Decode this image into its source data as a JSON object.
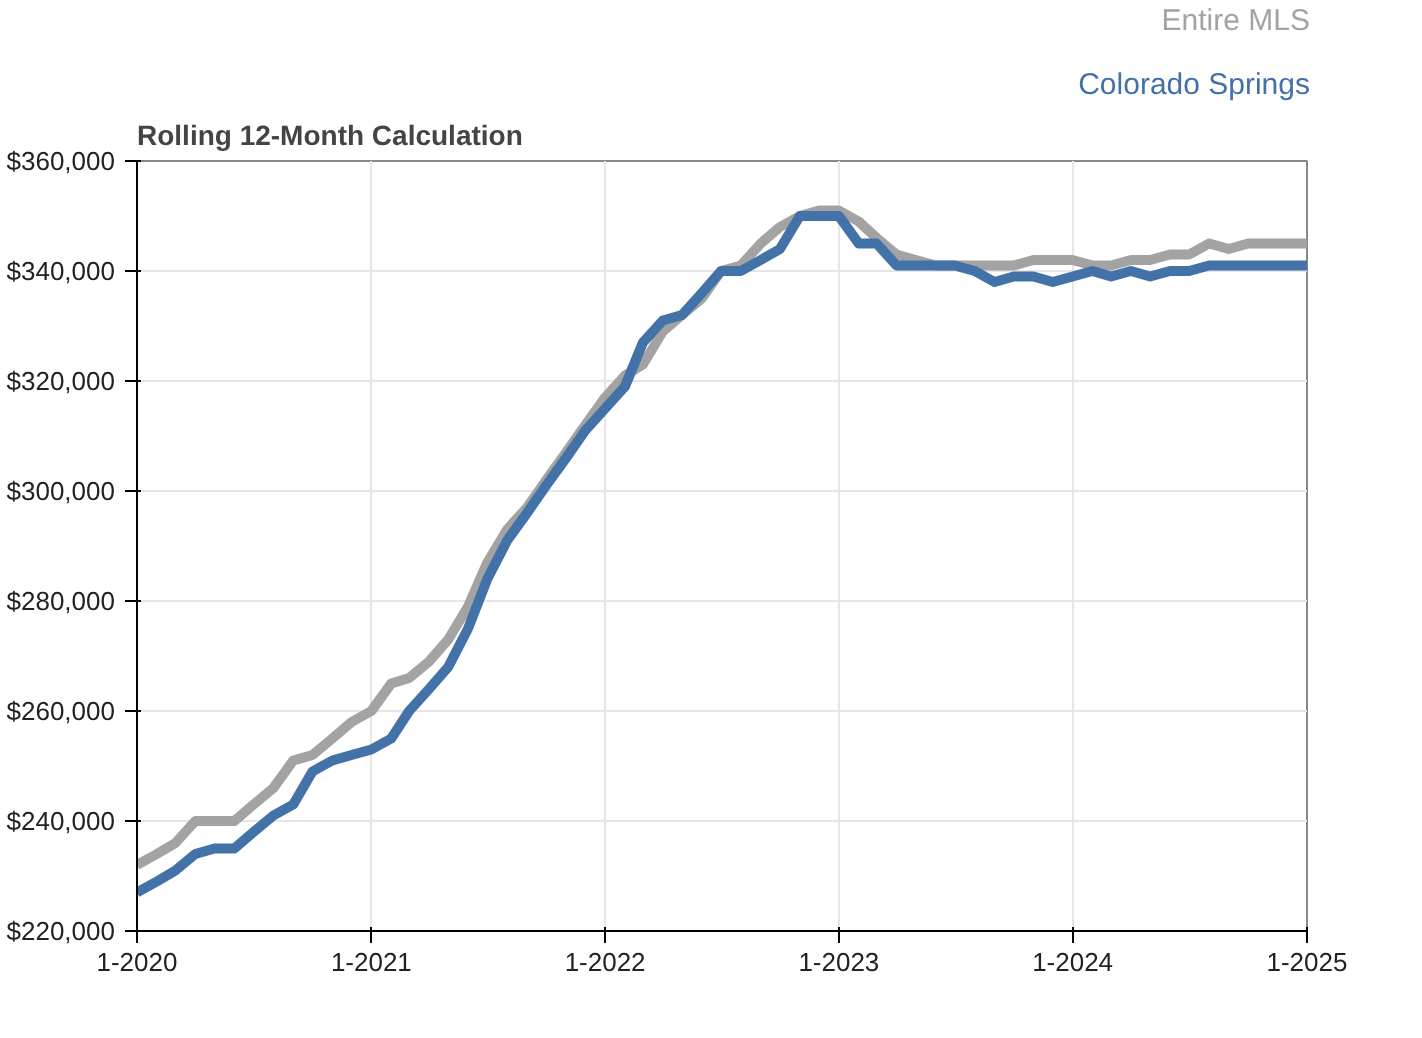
{
  "chart_data": {
    "type": "line",
    "title": "Rolling 12-Month Calculation",
    "x": [
      "2020-01",
      "2020-02",
      "2020-03",
      "2020-04",
      "2020-05",
      "2020-06",
      "2020-07",
      "2020-08",
      "2020-09",
      "2020-10",
      "2020-11",
      "2020-12",
      "2021-01",
      "2021-02",
      "2021-03",
      "2021-04",
      "2021-05",
      "2021-06",
      "2021-07",
      "2021-08",
      "2021-09",
      "2021-10",
      "2021-11",
      "2021-12",
      "2022-01",
      "2022-02",
      "2022-03",
      "2022-04",
      "2022-05",
      "2022-06",
      "2022-07",
      "2022-08",
      "2022-09",
      "2022-10",
      "2022-11",
      "2022-12",
      "2023-01",
      "2023-02",
      "2023-03",
      "2023-04",
      "2023-05",
      "2023-06",
      "2023-07",
      "2023-08",
      "2023-09",
      "2023-10",
      "2023-11",
      "2023-12",
      "2024-01",
      "2024-02",
      "2024-03",
      "2024-04",
      "2024-05",
      "2024-06",
      "2024-07",
      "2024-08",
      "2024-09",
      "2024-10",
      "2024-11",
      "2024-12",
      "2025-01"
    ],
    "series": [
      {
        "name": "Entire MLS",
        "color": "#a3a3a3",
        "values": [
          232000,
          234000,
          236000,
          240000,
          240000,
          240000,
          243000,
          246000,
          251000,
          252000,
          255000,
          258000,
          260000,
          265000,
          266000,
          269000,
          273000,
          279000,
          287000,
          293000,
          297000,
          302000,
          307000,
          312000,
          317000,
          321000,
          323000,
          329000,
          332000,
          335000,
          340000,
          341000,
          345000,
          348000,
          350000,
          351000,
          351000,
          349000,
          346000,
          343000,
          342000,
          341000,
          341000,
          341000,
          341000,
          341000,
          342000,
          342000,
          342000,
          341000,
          341000,
          342000,
          342000,
          343000,
          343000,
          345000,
          344000,
          345000,
          345000,
          345000,
          345000
        ]
      },
      {
        "name": "Colorado Springs",
        "color": "#4272a8",
        "values": [
          227000,
          229000,
          231000,
          234000,
          235000,
          235000,
          238000,
          241000,
          243000,
          249000,
          251000,
          252000,
          253000,
          255000,
          260000,
          264000,
          268000,
          275000,
          284000,
          291000,
          296000,
          301000,
          306000,
          311000,
          315000,
          319000,
          327000,
          331000,
          332000,
          336000,
          340000,
          340000,
          342000,
          344000,
          350000,
          350000,
          350000,
          345000,
          345000,
          341000,
          341000,
          341000,
          341000,
          340000,
          338000,
          339000,
          339000,
          338000,
          339000,
          340000,
          339000,
          340000,
          339000,
          340000,
          340000,
          341000,
          341000,
          341000,
          341000,
          341000,
          341000
        ]
      }
    ],
    "xlim": [
      "2020-01",
      "2025-01"
    ],
    "xticks": [
      {
        "value": "2020-01",
        "label": "1-2020"
      },
      {
        "value": "2021-01",
        "label": "1-2021"
      },
      {
        "value": "2022-01",
        "label": "1-2022"
      },
      {
        "value": "2023-01",
        "label": "1-2023"
      },
      {
        "value": "2024-01",
        "label": "1-2024"
      },
      {
        "value": "2025-01",
        "label": "1-2025"
      }
    ],
    "ylim": [
      220000,
      360000
    ],
    "yticks": [
      {
        "value": 220000,
        "label": "$220,000"
      },
      {
        "value": 240000,
        "label": "$240,000"
      },
      {
        "value": 260000,
        "label": "$260,000"
      },
      {
        "value": 280000,
        "label": "$280,000"
      },
      {
        "value": 300000,
        "label": "$300,000"
      },
      {
        "value": 320000,
        "label": "$320,000"
      },
      {
        "value": 340000,
        "label": "$340,000"
      },
      {
        "value": 360000,
        "label": "$360,000"
      }
    ],
    "grid": true,
    "legend": "top right",
    "line_style": "solid",
    "marker": "none"
  }
}
